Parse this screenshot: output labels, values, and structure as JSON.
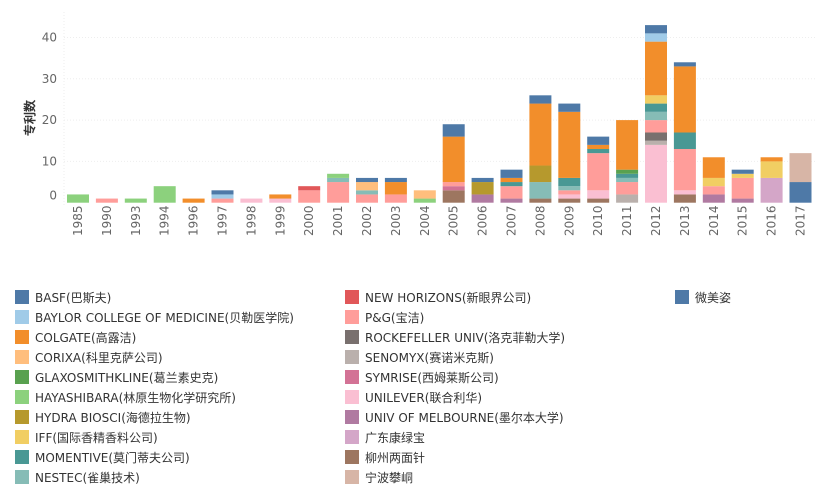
{
  "chart_data": {
    "type": "bar",
    "stacked": true,
    "title": "",
    "xlabel": "",
    "ylabel": "专利数",
    "ylim": [
      0,
      45
    ],
    "yticks": [
      0,
      10,
      20,
      30,
      40
    ],
    "grid": true,
    "legend_placement": "bottom",
    "categories": [
      "1985",
      "1990",
      "1993",
      "1994",
      "1996",
      "1997",
      "1998",
      "1999",
      "2000",
      "2001",
      "2002",
      "2003",
      "2004",
      "2005",
      "2006",
      "2007",
      "2008",
      "2009",
      "2010",
      "2011",
      "2012",
      "2013",
      "2014",
      "2015",
      "2016",
      "2017"
    ],
    "series": [
      {
        "name": "BASF(巴斯夫)",
        "color": "#4e79a7",
        "values": [
          0,
          0,
          0,
          0,
          0,
          1,
          0,
          0,
          0,
          0,
          1,
          1,
          0,
          3,
          1,
          2,
          2,
          2,
          2,
          0,
          2,
          1,
          0,
          1,
          0,
          0
        ]
      },
      {
        "name": "BAYLOR COLLEGE OF MEDICINE(贝勒医学院)",
        "color": "#a0cbe8",
        "values": [
          0,
          0,
          0,
          0,
          0,
          1,
          0,
          0,
          0,
          0,
          0,
          0,
          0,
          0,
          0,
          0,
          0,
          0,
          0,
          0,
          2,
          0,
          0,
          0,
          0,
          0
        ]
      },
      {
        "name": "COLGATE(高露洁)",
        "color": "#f28e2b",
        "values": [
          0,
          0,
          0,
          0,
          1,
          0,
          0,
          1,
          0,
          0,
          0,
          3,
          0,
          11,
          0,
          1,
          15,
          16,
          1,
          12,
          13,
          16,
          5,
          0,
          1,
          0
        ]
      },
      {
        "name": "CORIXA(科里克萨公司)",
        "color": "#ffbe7d",
        "values": [
          0,
          0,
          0,
          0,
          0,
          0,
          0,
          0,
          0,
          0,
          2,
          0,
          2,
          0,
          0,
          0,
          0,
          0,
          0,
          0,
          0,
          0,
          0,
          0,
          0,
          0
        ]
      },
      {
        "name": "GLAXOSMITHKLINE(葛兰素史克)",
        "color": "#59a14f",
        "values": [
          0,
          0,
          0,
          0,
          0,
          0,
          0,
          0,
          0,
          0,
          0,
          0,
          0,
          0,
          0,
          0,
          0,
          0,
          0,
          1,
          0,
          0,
          0,
          0,
          0,
          0
        ]
      },
      {
        "name": "HAYASHIBARA(林原生物化学研究所)",
        "color": "#8cd17d",
        "values": [
          2,
          0,
          1,
          4,
          0,
          0,
          0,
          0,
          0,
          1,
          0,
          0,
          1,
          0,
          0,
          0,
          0,
          0,
          0,
          0,
          0,
          0,
          0,
          0,
          0,
          0
        ]
      },
      {
        "name": "HYDRA BIOSCI(海德拉生物)",
        "color": "#b6992d",
        "values": [
          0,
          0,
          0,
          0,
          0,
          0,
          0,
          0,
          0,
          0,
          0,
          0,
          0,
          0,
          3,
          0,
          4,
          0,
          0,
          0,
          0,
          0,
          0,
          0,
          0,
          0
        ]
      },
      {
        "name": "IFF(国际香精香料公司)",
        "color": "#f1ce63",
        "values": [
          0,
          0,
          0,
          0,
          0,
          0,
          0,
          0,
          0,
          0,
          0,
          0,
          0,
          0,
          0,
          0,
          0,
          0,
          0,
          0,
          2,
          0,
          2,
          1,
          4,
          0
        ]
      },
      {
        "name": "MOMENTIVE(莫门蒂夫公司)",
        "color": "#499894",
        "values": [
          0,
          0,
          0,
          0,
          0,
          0,
          0,
          0,
          0,
          0,
          0,
          0,
          0,
          0,
          0,
          1,
          0,
          2,
          1,
          1,
          2,
          4,
          0,
          0,
          0,
          0
        ]
      },
      {
        "name": "NESTEC(雀巢技术)",
        "color": "#86bcb6",
        "values": [
          0,
          0,
          0,
          0,
          0,
          0,
          0,
          0,
          0,
          1,
          1,
          0,
          0,
          0,
          0,
          0,
          4,
          1,
          0,
          1,
          2,
          0,
          0,
          0,
          0,
          0
        ]
      },
      {
        "name": "NEW HORIZONS(新眼界公司)",
        "color": "#e15759",
        "values": [
          0,
          0,
          0,
          0,
          0,
          0,
          0,
          0,
          1,
          0,
          0,
          0,
          0,
          0,
          0,
          0,
          0,
          0,
          0,
          0,
          0,
          0,
          0,
          0,
          0,
          0
        ]
      },
      {
        "name": "P&G(宝洁)",
        "color": "#ff9d9a",
        "values": [
          0,
          1,
          0,
          0,
          0,
          1,
          0,
          0,
          3,
          5,
          2,
          2,
          0,
          1,
          0,
          3,
          0,
          1,
          9,
          3,
          3,
          10,
          2,
          5,
          0,
          0
        ]
      },
      {
        "name": "ROCKEFELLER UNIV(洛克菲勒大学)",
        "color": "#79706e",
        "values": [
          0,
          0,
          0,
          0,
          0,
          0,
          0,
          0,
          0,
          0,
          0,
          0,
          0,
          0,
          0,
          0,
          0,
          0,
          0,
          0,
          2,
          0,
          0,
          0,
          0,
          0
        ]
      },
      {
        "name": "SENOMYX(赛诺米克斯)",
        "color": "#bab0ac",
        "values": [
          0,
          0,
          0,
          0,
          0,
          0,
          0,
          0,
          0,
          0,
          0,
          0,
          0,
          0,
          0,
          0,
          0,
          0,
          0,
          2,
          1,
          0,
          0,
          0,
          0,
          0
        ]
      },
      {
        "name": "SYMRISE(西姆莱斯公司)",
        "color": "#d37295",
        "values": [
          0,
          0,
          0,
          0,
          0,
          0,
          0,
          0,
          0,
          0,
          0,
          0,
          0,
          1,
          0,
          0,
          0,
          0,
          0,
          0,
          0,
          0,
          0,
          0,
          0,
          0
        ]
      },
      {
        "name": "UNILEVER(联合利华)",
        "color": "#fabfd2",
        "values": [
          0,
          0,
          0,
          0,
          0,
          0,
          1,
          1,
          0,
          0,
          0,
          0,
          0,
          0,
          0,
          0,
          0,
          1,
          2,
          0,
          14,
          1,
          0,
          0,
          0,
          0
        ]
      },
      {
        "name": "UNIV OF MELBOURNE(墨尔本大学)",
        "color": "#b07aa1",
        "values": [
          0,
          0,
          0,
          0,
          0,
          0,
          0,
          0,
          0,
          0,
          0,
          0,
          0,
          0,
          2,
          1,
          0,
          0,
          0,
          0,
          0,
          0,
          2,
          1,
          0,
          0
        ]
      },
      {
        "name": "广东康绿宝",
        "color": "#d4a6c8",
        "values": [
          0,
          0,
          0,
          0,
          0,
          0,
          0,
          0,
          0,
          0,
          0,
          0,
          0,
          0,
          0,
          0,
          0,
          0,
          0,
          0,
          0,
          0,
          0,
          0,
          6,
          0
        ]
      },
      {
        "name": "柳州两面针",
        "color": "#9d7660",
        "values": [
          0,
          0,
          0,
          0,
          0,
          0,
          0,
          0,
          0,
          0,
          0,
          0,
          0,
          3,
          0,
          0,
          1,
          1,
          1,
          0,
          0,
          2,
          0,
          0,
          0,
          0
        ]
      },
      {
        "name": "宁波攀峒",
        "color": "#d7b5a6",
        "values": [
          0,
          0,
          0,
          0,
          0,
          0,
          0,
          0,
          0,
          0,
          0,
          0,
          0,
          0,
          0,
          0,
          0,
          0,
          0,
          0,
          0,
          0,
          0,
          0,
          0,
          7
        ]
      },
      {
        "name": "微美姿",
        "color": "#4e79a7",
        "values": [
          0,
          0,
          0,
          0,
          0,
          0,
          0,
          0,
          0,
          0,
          0,
          0,
          0,
          0,
          0,
          0,
          0,
          0,
          0,
          0,
          0,
          0,
          0,
          0,
          0,
          5
        ]
      }
    ]
  }
}
